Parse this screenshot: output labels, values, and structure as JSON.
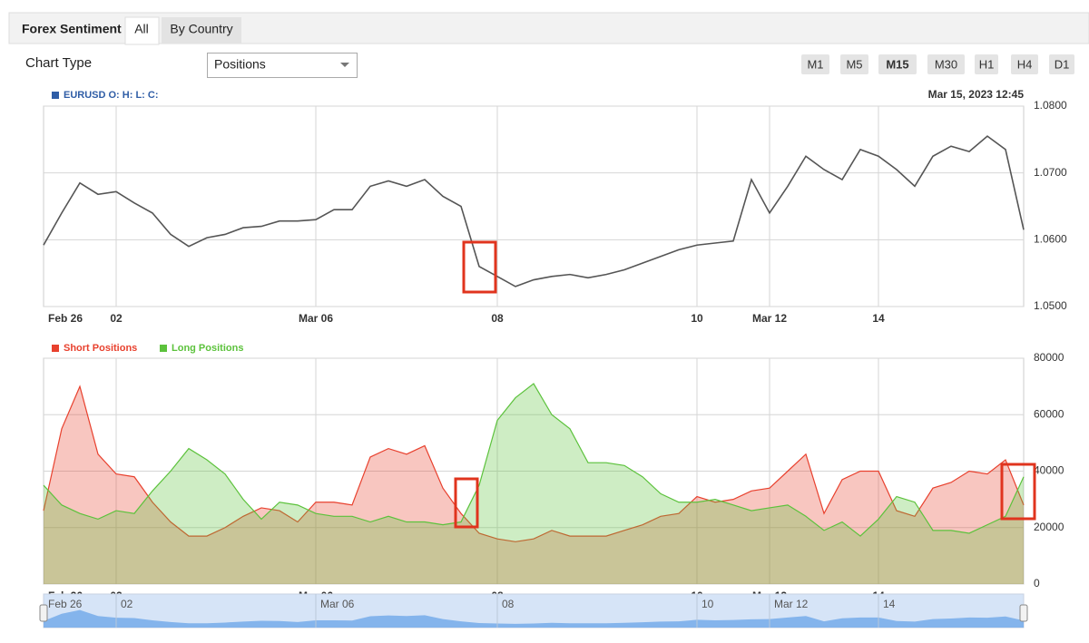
{
  "ui": {
    "title": "Forex Sentiment",
    "tabs": [
      "All",
      "By Country"
    ],
    "chart_type_label": "Chart Type",
    "chart_type_value": "Positions",
    "timeframes": [
      "M1",
      "M5",
      "M15",
      "M30",
      "H1",
      "H4",
      "D1"
    ],
    "selected_timeframe": "M15"
  },
  "chart_data": [
    {
      "type": "line",
      "timestamp": "Mar 15, 2023 12:45",
      "legend_marker_color": "#2f5da6",
      "categories": [
        "Feb 26",
        null,
        null,
        null,
        "02",
        null,
        null,
        null,
        null,
        null,
        null,
        null,
        null,
        null,
        null,
        "Mar 06",
        null,
        null,
        null,
        null,
        null,
        null,
        null,
        null,
        null,
        "08",
        null,
        null,
        null,
        null,
        null,
        null,
        null,
        null,
        null,
        null,
        "10",
        null,
        null,
        null,
        "Mar 12",
        null,
        null,
        null,
        null,
        null,
        "14",
        null,
        null,
        null,
        null,
        null,
        null,
        null,
        null
      ],
      "series": [
        {
          "name": "EURUSD O: H: L: C:",
          "color": "#555555",
          "values": [
            1.0592,
            1.064,
            1.0685,
            1.0668,
            1.0672,
            1.0655,
            1.064,
            1.0608,
            1.059,
            1.0603,
            1.0608,
            1.0618,
            1.062,
            1.0628,
            1.0628,
            1.063,
            1.0645,
            1.0645,
            1.068,
            1.0688,
            1.068,
            1.069,
            1.0665,
            1.065,
            1.056,
            1.0545,
            1.053,
            1.054,
            1.0545,
            1.0548,
            1.0543,
            1.0548,
            1.0555,
            1.0565,
            1.0575,
            1.0585,
            1.0592,
            1.0595,
            1.0598,
            1.069,
            1.064,
            1.068,
            1.0725,
            1.0705,
            1.069,
            1.0735,
            1.0725,
            1.0705,
            1.068,
            1.0725,
            1.074,
            1.0732,
            1.0755,
            1.0735,
            1.0615
          ]
        }
      ],
      "ylim": [
        1.05,
        1.08
      ],
      "yticks": [
        {
          "value": 1.05,
          "label": "1.0500"
        },
        {
          "value": 1.06,
          "label": "1.0600"
        },
        {
          "value": 1.07,
          "label": "1.0700"
        },
        {
          "value": 1.08,
          "label": "1.0800"
        }
      ],
      "grid": true
    },
    {
      "type": "area",
      "categories": [
        "Feb 26",
        null,
        null,
        null,
        "02",
        null,
        null,
        null,
        null,
        null,
        null,
        null,
        null,
        null,
        null,
        "Mar 06",
        null,
        null,
        null,
        null,
        null,
        null,
        null,
        null,
        null,
        "08",
        null,
        null,
        null,
        null,
        null,
        null,
        null,
        null,
        null,
        null,
        "10",
        null,
        null,
        null,
        "Mar 12",
        null,
        null,
        null,
        null,
        null,
        "14",
        null,
        null,
        null,
        null,
        null,
        null,
        null,
        null
      ],
      "series": [
        {
          "name": "Short Positions",
          "color": "#e8412e",
          "values": [
            26000,
            55000,
            70000,
            46000,
            39000,
            38000,
            29000,
            22000,
            17000,
            17000,
            20000,
            24000,
            27000,
            26000,
            22000,
            29000,
            29000,
            28000,
            45000,
            48000,
            46000,
            49000,
            34000,
            25000,
            18000,
            16000,
            15000,
            16000,
            19000,
            17000,
            17000,
            17000,
            19000,
            21000,
            24000,
            25000,
            31000,
            29000,
            30000,
            33000,
            34000,
            40000,
            46000,
            25000,
            37000,
            40000,
            40000,
            26000,
            24000,
            34000,
            36000,
            40000,
            39000,
            44000,
            28000
          ]
        },
        {
          "name": "Long Positions",
          "color": "#5cc23c",
          "values": [
            35000,
            28000,
            25000,
            23000,
            26000,
            25000,
            33000,
            40000,
            48000,
            44000,
            39000,
            30000,
            23000,
            29000,
            28000,
            25000,
            24000,
            24000,
            22000,
            24000,
            22000,
            22000,
            21000,
            22000,
            35000,
            58000,
            66000,
            71000,
            60000,
            55000,
            43000,
            43000,
            42000,
            38000,
            32000,
            29000,
            29000,
            30000,
            28000,
            26000,
            27000,
            28000,
            24000,
            19000,
            22000,
            17000,
            23000,
            31000,
            29000,
            19000,
            19000,
            18000,
            21000,
            24000,
            38000
          ]
        }
      ],
      "ylim": [
        0,
        80000
      ],
      "yticks": [
        0,
        20000,
        40000,
        60000,
        80000
      ],
      "grid": true
    }
  ]
}
